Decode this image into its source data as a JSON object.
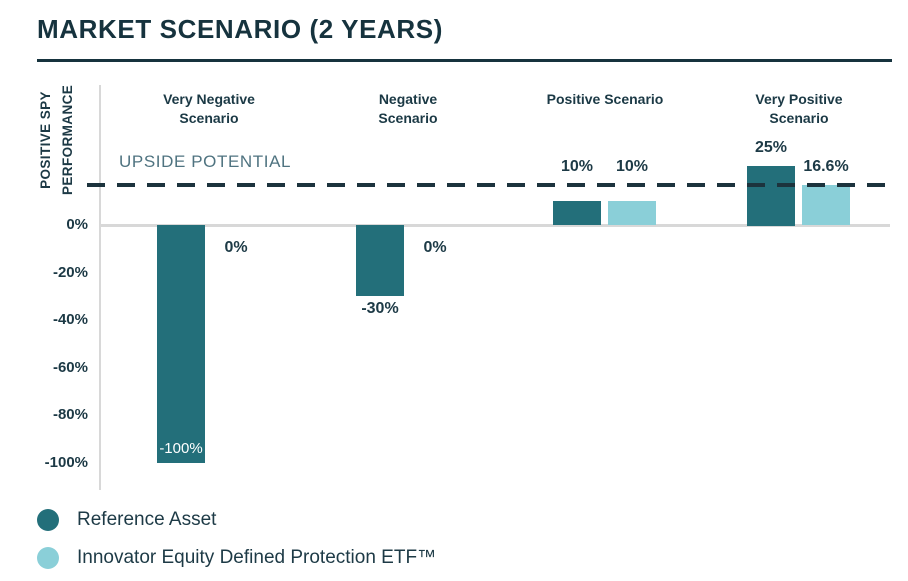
{
  "title": "MARKET SCENARIO (2 YEARS)",
  "colors": {
    "reference_asset": "#236F7A",
    "etf": "#8ACFD8",
    "title_text": "#16333E",
    "dark_text": "#1C3945",
    "upside_text": "#4F7380",
    "dash_line": "#1C333D",
    "axis_gray": "#D8D8D8"
  },
  "chart_data": {
    "type": "bar",
    "title": "MARKET SCENARIO (2 YEARS)",
    "ylabel": "POSITIVE SPY\nPERFORMANCE",
    "ylim": [
      -100,
      30
    ],
    "grid": false,
    "legend_position": "bottom-left",
    "yticks": [
      {
        "label": "0%",
        "value": 0
      },
      {
        "label": "-20%",
        "value": -20
      },
      {
        "label": "-40%",
        "value": -40
      },
      {
        "label": "-60%",
        "value": -60
      },
      {
        "label": "-80%",
        "value": -80
      },
      {
        "label": "-100%",
        "value": -100
      }
    ],
    "categories": [
      "Very Negative Scenario",
      "Negative Scenario",
      "Positive Scenario",
      "Very Positive Scenario"
    ],
    "series": [
      {
        "name": "Reference Asset",
        "color": "#236F7A",
        "values": [
          -100,
          -30,
          10,
          25
        ],
        "labels": [
          "-100%",
          "-30%",
          "10%",
          "25%"
        ]
      },
      {
        "name": "Innovator Equity Defined Protection ETF™",
        "color": "#8ACFD8",
        "values": [
          0,
          0,
          10,
          16.6
        ],
        "labels": [
          "0%",
          "0%",
          "10%",
          "16.6%"
        ]
      }
    ],
    "annotations": {
      "cap_line": {
        "label": "UPSIDE POTENTIAL",
        "value": 16.6,
        "style": "dashed"
      }
    }
  }
}
